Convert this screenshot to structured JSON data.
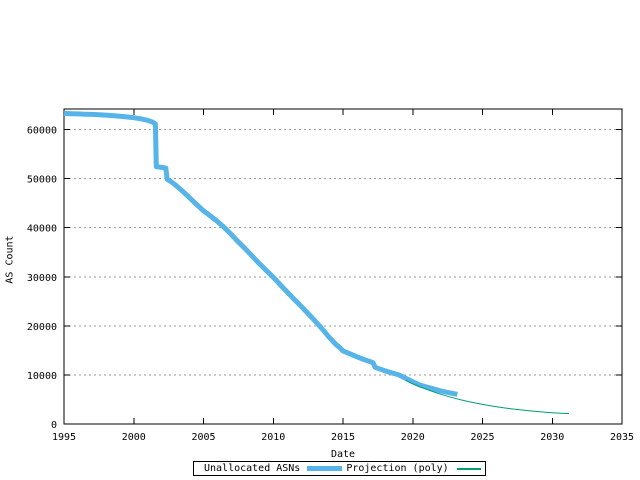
{
  "figure": {
    "background": "#ffffff",
    "border_color": "#000000",
    "grid_color": "#9e9e9e"
  },
  "chart_data": {
    "type": "line",
    "title": "",
    "xlabel": "Date",
    "ylabel": "AS Count",
    "xlim": [
      1995,
      2035
    ],
    "ylim": [
      0,
      64200
    ],
    "xticks": [
      1995,
      2000,
      2005,
      2010,
      2015,
      2020,
      2025,
      2030,
      2035
    ],
    "yticks": [
      0,
      10000,
      20000,
      30000,
      40000,
      50000,
      60000
    ],
    "grid": "horizontal-dashed",
    "legend_position": "bottom-center-outside",
    "series": [
      {
        "name": "Unallocated ASNs",
        "color": "#56B4E9",
        "width": 5,
        "points": [
          [
            1995.0,
            63300
          ],
          [
            1995.5,
            63250
          ],
          [
            1996.0,
            63200
          ],
          [
            1996.5,
            63150
          ],
          [
            1997.0,
            63100
          ],
          [
            1997.5,
            63030
          ],
          [
            1998.0,
            62950
          ],
          [
            1998.5,
            62850
          ],
          [
            1999.0,
            62740
          ],
          [
            1999.5,
            62600
          ],
          [
            2000.0,
            62420
          ],
          [
            2000.5,
            62200
          ],
          [
            2001.0,
            61900
          ],
          [
            2001.3,
            61600
          ],
          [
            2001.55,
            61150
          ],
          [
            2001.62,
            52450
          ],
          [
            2002.0,
            52300
          ],
          [
            2002.3,
            52150
          ],
          [
            2002.4,
            49850
          ],
          [
            2002.7,
            49350
          ],
          [
            2003.0,
            48700
          ],
          [
            2003.5,
            47450
          ],
          [
            2004.0,
            46100
          ],
          [
            2004.5,
            44750
          ],
          [
            2005.0,
            43450
          ],
          [
            2005.5,
            42400
          ],
          [
            2006.0,
            41300
          ],
          [
            2006.5,
            40000
          ],
          [
            2007.0,
            38600
          ],
          [
            2007.5,
            37100
          ],
          [
            2008.0,
            35700
          ],
          [
            2008.5,
            34200
          ],
          [
            2009.0,
            32700
          ],
          [
            2009.5,
            31300
          ],
          [
            2010.0,
            29900
          ],
          [
            2010.5,
            28400
          ],
          [
            2011.0,
            26900
          ],
          [
            2011.5,
            25400
          ],
          [
            2012.0,
            24000
          ],
          [
            2012.5,
            22500
          ],
          [
            2013.0,
            21000
          ],
          [
            2013.5,
            19400
          ],
          [
            2014.0,
            17700
          ],
          [
            2014.5,
            16200
          ],
          [
            2014.8,
            15500
          ],
          [
            2015.0,
            14900
          ],
          [
            2015.5,
            14300
          ],
          [
            2016.0,
            13700
          ],
          [
            2016.5,
            13150
          ],
          [
            2017.0,
            12650
          ],
          [
            2017.15,
            12500
          ],
          [
            2017.3,
            11550
          ],
          [
            2017.6,
            11250
          ],
          [
            2018.0,
            10850
          ],
          [
            2018.5,
            10420
          ],
          [
            2019.0,
            10000
          ],
          [
            2019.5,
            9300
          ],
          [
            2020.0,
            8600
          ],
          [
            2020.5,
            7950
          ],
          [
            2021.0,
            7550
          ],
          [
            2021.5,
            7150
          ],
          [
            2022.0,
            6750
          ],
          [
            2022.5,
            6450
          ],
          [
            2023.0,
            6150
          ],
          [
            2023.2,
            6050
          ]
        ]
      },
      {
        "name": "Projection (poly)",
        "color": "#009E73",
        "width": 1,
        "points": [
          [
            2019.5,
            8900
          ],
          [
            2020.0,
            8200
          ],
          [
            2020.5,
            7600
          ],
          [
            2021.0,
            7050
          ],
          [
            2021.5,
            6550
          ],
          [
            2022.0,
            6080
          ],
          [
            2022.5,
            5650
          ],
          [
            2023.0,
            5260
          ],
          [
            2023.5,
            4900
          ],
          [
            2024.0,
            4570
          ],
          [
            2024.5,
            4270
          ],
          [
            2025.0,
            4000
          ],
          [
            2025.5,
            3750
          ],
          [
            2026.0,
            3520
          ],
          [
            2026.5,
            3310
          ],
          [
            2027.0,
            3120
          ],
          [
            2027.5,
            2950
          ],
          [
            2028.0,
            2790
          ],
          [
            2028.5,
            2650
          ],
          [
            2029.0,
            2520
          ],
          [
            2029.5,
            2410
          ],
          [
            2030.0,
            2310
          ],
          [
            2030.5,
            2220
          ],
          [
            2031.0,
            2140
          ],
          [
            2031.2,
            2110
          ]
        ]
      }
    ]
  }
}
